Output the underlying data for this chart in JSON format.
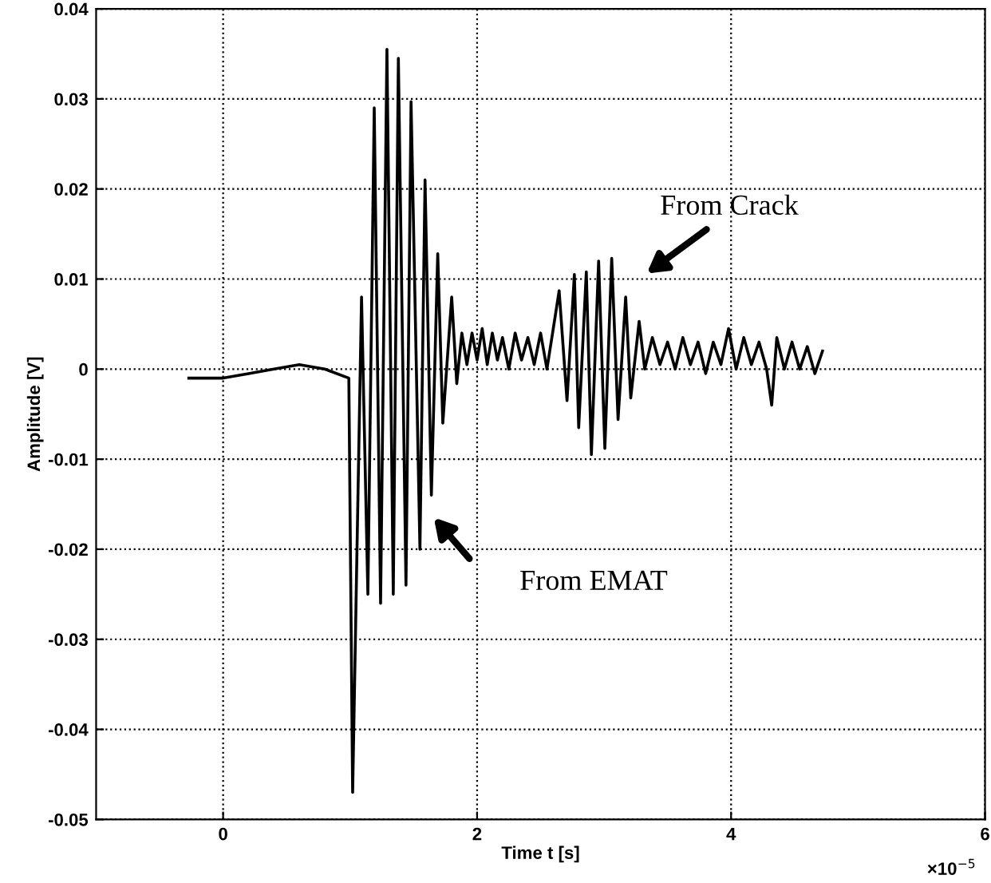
{
  "chart_data": {
    "type": "line",
    "xlabel": "Time t [s]",
    "ylabel": "Amplitude [V]",
    "xlim": [
      -1,
      6
    ],
    "ylim": [
      -0.05,
      0.04
    ],
    "xticks": [
      0,
      2,
      4,
      6
    ],
    "yticks": [
      -0.05,
      -0.04,
      -0.03,
      -0.02,
      -0.01,
      0,
      0.01,
      0.02,
      0.03,
      0.04
    ],
    "grid": true,
    "line_style": "solid",
    "marker": "none",
    "series": [
      {
        "color": "#000000",
        "x": [
          -0.27,
          0.0,
          0.2,
          0.4,
          0.6,
          0.8,
          0.99,
          1.02,
          1.09,
          1.14,
          1.19,
          1.24,
          1.29,
          1.34,
          1.38,
          1.44,
          1.48,
          1.55,
          1.59,
          1.64,
          1.69,
          1.73,
          1.8,
          1.84,
          1.88,
          1.92,
          1.96,
          2.0,
          2.04,
          2.08,
          2.12,
          2.16,
          2.2,
          2.25,
          2.3,
          2.35,
          2.4,
          2.45,
          2.5,
          2.55,
          2.6,
          2.646,
          2.708,
          2.766,
          2.8,
          2.86,
          2.9,
          2.957,
          3.006,
          3.06,
          3.11,
          3.17,
          3.21,
          3.276,
          3.32,
          3.38,
          3.44,
          3.5,
          3.56,
          3.62,
          3.68,
          3.74,
          3.8,
          3.86,
          3.92,
          3.98,
          4.04,
          4.1,
          4.16,
          4.22,
          4.28,
          4.32,
          4.36,
          4.42,
          4.48,
          4.54,
          4.6,
          4.66,
          4.72
        ],
        "values": [
          -0.001,
          -0.001,
          -0.0005,
          0.0,
          0.0005,
          0.0,
          -0.001,
          -0.047,
          0.008,
          -0.025,
          0.029,
          -0.026,
          0.0355,
          -0.025,
          0.0345,
          -0.024,
          0.0297,
          -0.02,
          0.021,
          -0.014,
          0.0128,
          -0.006,
          0.008,
          -0.0016,
          0.004,
          0.0005,
          0.004,
          0.001,
          0.0045,
          0.0005,
          0.004,
          0.001,
          0.0035,
          0.0,
          0.004,
          0.001,
          0.0035,
          0.0005,
          0.004,
          0.0,
          0.0045,
          0.0087,
          -0.0035,
          0.0105,
          -0.0065,
          0.0108,
          -0.0095,
          0.012,
          -0.0088,
          0.0123,
          -0.0056,
          0.008,
          -0.0032,
          0.0053,
          0.0,
          0.0035,
          0.0005,
          0.003,
          0.0,
          0.0035,
          0.0005,
          0.003,
          -0.0005,
          0.003,
          0.0005,
          0.0045,
          0.0,
          0.0035,
          0.0005,
          0.003,
          0.0,
          -0.004,
          0.0035,
          0.0,
          0.003,
          0.0,
          0.0025,
          -0.0005,
          0.002
        ]
      }
    ],
    "annotations": [
      "From Crack",
      "From EMAT",
      "×10$^{−5}$"
    ]
  }
}
